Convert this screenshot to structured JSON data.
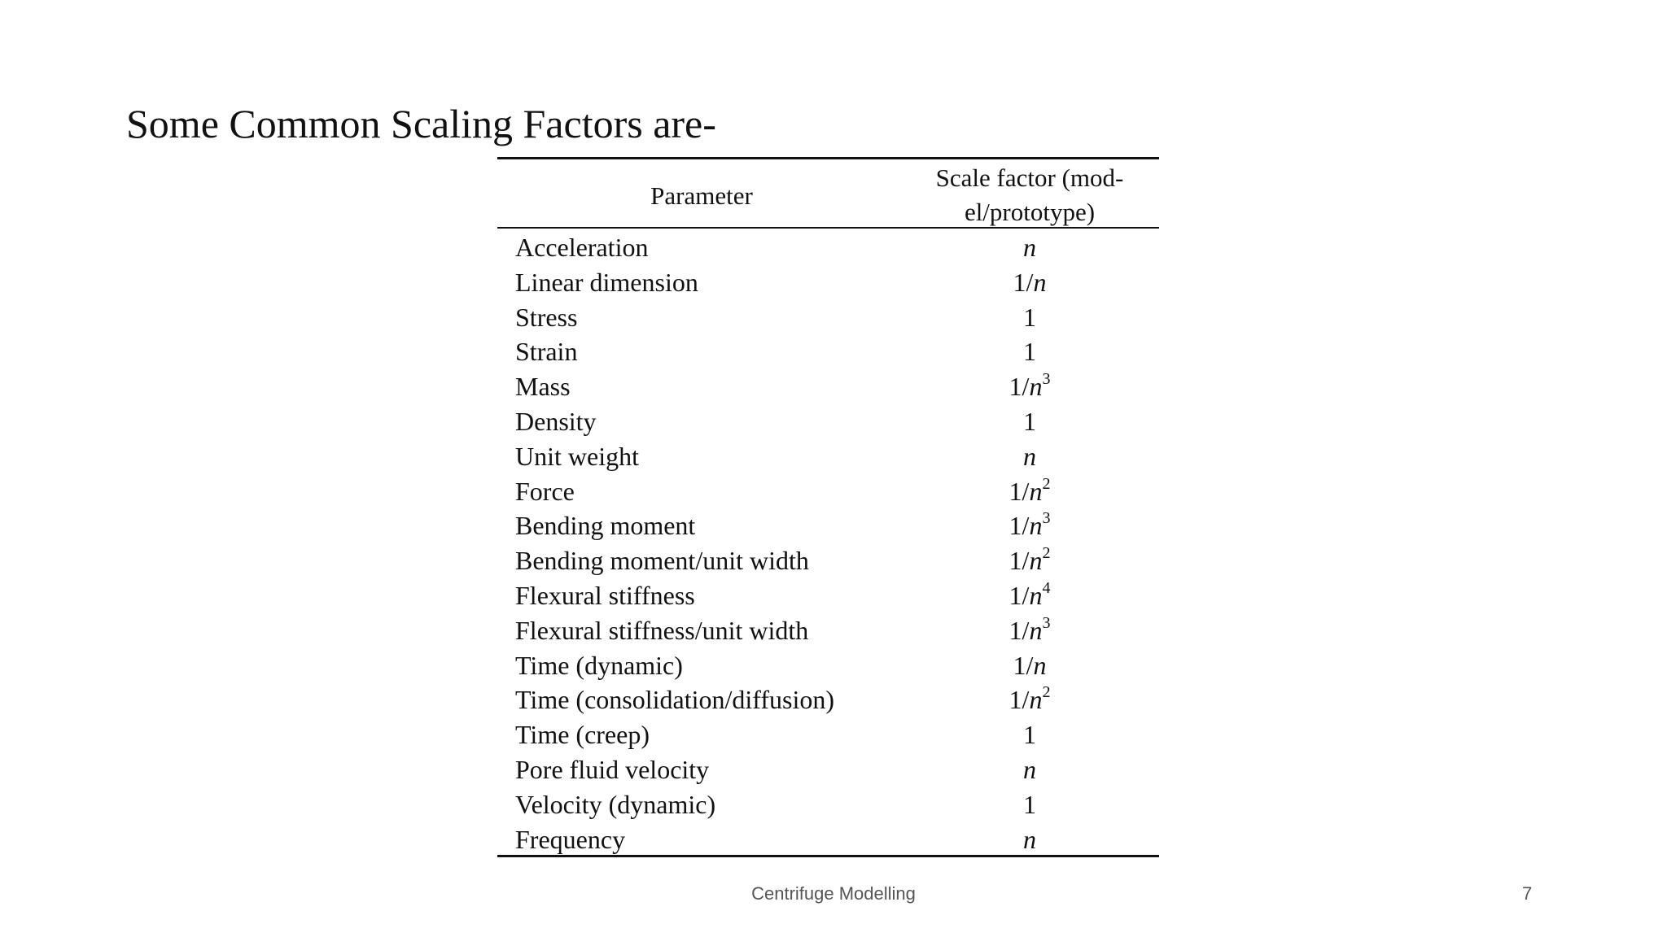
{
  "slide": {
    "title": "Some Common Scaling Factors are-",
    "table": {
      "header": {
        "parameter": "Parameter",
        "scale_factor": [
          "Scale factor (mod-",
          "el/prototype)"
        ]
      },
      "rows": [
        {
          "parameter": "Acceleration",
          "scale": "n"
        },
        {
          "parameter": "Linear dimension",
          "scale": "1/n"
        },
        {
          "parameter": "Stress",
          "scale": "1"
        },
        {
          "parameter": "Strain",
          "scale": "1"
        },
        {
          "parameter": "Mass",
          "scale": "1/n",
          "exponent": "3"
        },
        {
          "parameter": "Density",
          "scale": "1"
        },
        {
          "parameter": "Unit weight",
          "scale": "n"
        },
        {
          "parameter": "Force",
          "scale": "1/n",
          "exponent": "2"
        },
        {
          "parameter": "Bending moment",
          "scale": "1/n",
          "exponent": "3"
        },
        {
          "parameter": "Bending moment/unit width",
          "scale": "1/n",
          "exponent": "2"
        },
        {
          "parameter": "Flexural stiffness",
          "scale": "1/n",
          "exponent": "4"
        },
        {
          "parameter": "Flexural stiffness/unit width",
          "scale": "1/n",
          "exponent": "3"
        },
        {
          "parameter": "Time (dynamic)",
          "scale": "1/n"
        },
        {
          "parameter": "Time (consolidation/diffusion)",
          "scale": "1/n",
          "exponent": "2"
        },
        {
          "parameter": "Time (creep)",
          "scale": "1"
        },
        {
          "parameter": "Pore fluid velocity",
          "scale": "n"
        },
        {
          "parameter": "Velocity (dynamic)",
          "scale": "1"
        },
        {
          "parameter": "Frequency",
          "scale": "n"
        }
      ]
    },
    "footer": "Centrifuge Modelling",
    "page_number": "7"
  }
}
